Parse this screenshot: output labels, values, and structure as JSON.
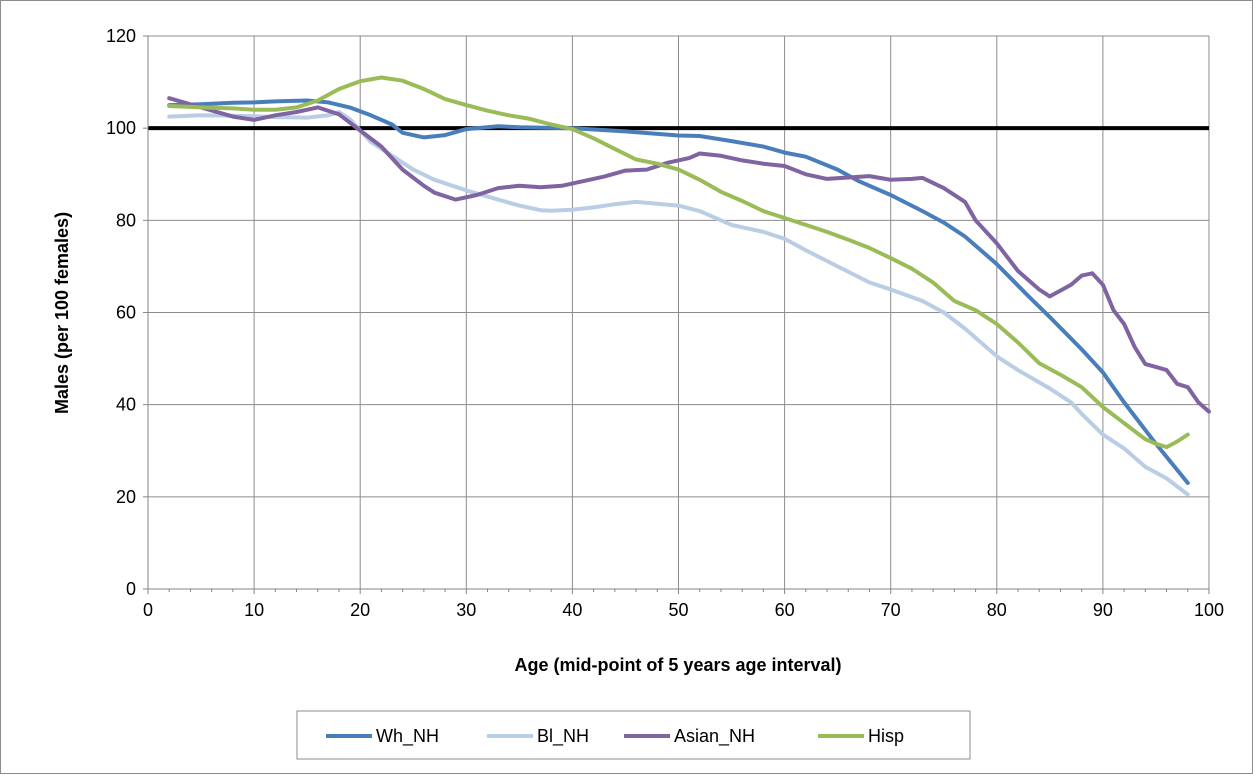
{
  "chart_data": {
    "type": "line",
    "title": "",
    "xlabel": "Age (mid-point of 5 years age interval)",
    "ylabel": "Males (per 100 females)",
    "xlim": [
      0,
      100
    ],
    "ylim": [
      0,
      120
    ],
    "x_ticks": [
      0,
      10,
      20,
      30,
      40,
      50,
      60,
      70,
      80,
      90,
      100
    ],
    "y_ticks": [
      0,
      20,
      40,
      60,
      80,
      100,
      120
    ],
    "grid": true,
    "legend_position": "bottom",
    "reference_line": {
      "y": 100,
      "color": "#000000"
    },
    "series": [
      {
        "name": "Wh_NH",
        "color": "#4a7ebb",
        "points": [
          [
            2,
            105
          ],
          [
            5,
            105.2
          ],
          [
            8,
            105.5
          ],
          [
            10,
            105.6
          ],
          [
            12,
            105.8
          ],
          [
            15,
            106
          ],
          [
            17,
            105.6
          ],
          [
            19,
            104.5
          ],
          [
            21,
            102.8
          ],
          [
            23,
            100.8
          ],
          [
            24,
            99
          ],
          [
            26,
            98
          ],
          [
            28,
            98.5
          ],
          [
            30,
            99.8
          ],
          [
            33,
            100.4
          ],
          [
            35,
            100.2
          ],
          [
            40,
            100
          ],
          [
            45,
            99.3
          ],
          [
            50,
            98.4
          ],
          [
            52,
            98.3
          ],
          [
            55,
            97.2
          ],
          [
            58,
            96
          ],
          [
            60,
            94.7
          ],
          [
            62,
            93.8
          ],
          [
            65,
            91
          ],
          [
            67,
            88.5
          ],
          [
            70,
            85.5
          ],
          [
            73,
            82
          ],
          [
            75,
            79.5
          ],
          [
            77,
            76.5
          ],
          [
            80,
            70.5
          ],
          [
            83,
            63.5
          ],
          [
            85,
            59
          ],
          [
            88,
            52
          ],
          [
            90,
            47
          ],
          [
            92,
            40.5
          ],
          [
            95,
            31.5
          ],
          [
            98,
            23
          ]
        ]
      },
      {
        "name": "Bl_NH",
        "color": "#b9cde5",
        "points": [
          [
            2,
            102.5
          ],
          [
            5,
            102.8
          ],
          [
            8,
            102.7
          ],
          [
            10,
            102.6
          ],
          [
            12,
            102.4
          ],
          [
            15,
            102.3
          ],
          [
            17,
            102.8
          ],
          [
            18,
            103.5
          ],
          [
            19,
            102
          ],
          [
            21,
            97
          ],
          [
            23,
            94
          ],
          [
            25,
            91
          ],
          [
            27,
            88.8
          ],
          [
            30,
            86.5
          ],
          [
            33,
            84.5
          ],
          [
            35,
            83.2
          ],
          [
            37,
            82.2
          ],
          [
            38,
            82.1
          ],
          [
            40,
            82.3
          ],
          [
            42,
            82.8
          ],
          [
            44,
            83.5
          ],
          [
            46,
            84
          ],
          [
            48,
            83.6
          ],
          [
            50,
            83.2
          ],
          [
            52,
            82
          ],
          [
            55,
            79
          ],
          [
            58,
            77.5
          ],
          [
            60,
            76
          ],
          [
            62,
            73.5
          ],
          [
            65,
            70
          ],
          [
            68,
            66.5
          ],
          [
            70,
            65
          ],
          [
            73,
            62.5
          ],
          [
            75,
            60
          ],
          [
            77,
            56.5
          ],
          [
            80,
            50.5
          ],
          [
            82,
            47.5
          ],
          [
            85,
            43.5
          ],
          [
            87,
            40.5
          ],
          [
            88,
            38
          ],
          [
            90,
            33.5
          ],
          [
            92,
            30.5
          ],
          [
            94,
            26.5
          ],
          [
            96,
            24
          ],
          [
            98,
            20.5
          ]
        ]
      },
      {
        "name": "Asian_NH",
        "color": "#8064a2",
        "points": [
          [
            2,
            106.5
          ],
          [
            5,
            104.5
          ],
          [
            8,
            102.5
          ],
          [
            10,
            101.8
          ],
          [
            12,
            102.8
          ],
          [
            14,
            103.5
          ],
          [
            16,
            104.5
          ],
          [
            18,
            103
          ],
          [
            20,
            99.5
          ],
          [
            22,
            96
          ],
          [
            24,
            91
          ],
          [
            26,
            87.5
          ],
          [
            27,
            86
          ],
          [
            29,
            84.5
          ],
          [
            31,
            85.5
          ],
          [
            33,
            87
          ],
          [
            35,
            87.5
          ],
          [
            37,
            87.2
          ],
          [
            39,
            87.5
          ],
          [
            41,
            88.5
          ],
          [
            43,
            89.5
          ],
          [
            45,
            90.8
          ],
          [
            47,
            91
          ],
          [
            49,
            92.5
          ],
          [
            51,
            93.5
          ],
          [
            52,
            94.5
          ],
          [
            54,
            94
          ],
          [
            56,
            93
          ],
          [
            58,
            92.3
          ],
          [
            60,
            91.8
          ],
          [
            62,
            90
          ],
          [
            64,
            89
          ],
          [
            66,
            89.3
          ],
          [
            68,
            89.6
          ],
          [
            70,
            88.8
          ],
          [
            72,
            89
          ],
          [
            73,
            89.2
          ],
          [
            75,
            87
          ],
          [
            77,
            84
          ],
          [
            78,
            80
          ],
          [
            80,
            75
          ],
          [
            82,
            69
          ],
          [
            84,
            65
          ],
          [
            85,
            63.5
          ],
          [
            87,
            66
          ],
          [
            88,
            68
          ],
          [
            89,
            68.5
          ],
          [
            90,
            66
          ],
          [
            91,
            60.5
          ],
          [
            92,
            57.5
          ],
          [
            93,
            52.5
          ],
          [
            94,
            48.8
          ],
          [
            95,
            48.2
          ],
          [
            96,
            47.5
          ],
          [
            97,
            44.5
          ],
          [
            98,
            43.8
          ],
          [
            99,
            40.5
          ],
          [
            100,
            38.5
          ]
        ]
      },
      {
        "name": "Hisp",
        "color": "#9bbb59",
        "points": [
          [
            2,
            104.8
          ],
          [
            5,
            104.5
          ],
          [
            8,
            104.3
          ],
          [
            10,
            104
          ],
          [
            12,
            104
          ],
          [
            14,
            104.5
          ],
          [
            16,
            106
          ],
          [
            18,
            108.5
          ],
          [
            20,
            110.2
          ],
          [
            22,
            111
          ],
          [
            24,
            110.3
          ],
          [
            26,
            108.5
          ],
          [
            28,
            106.3
          ],
          [
            30,
            105
          ],
          [
            32,
            103.8
          ],
          [
            34,
            102.8
          ],
          [
            36,
            102
          ],
          [
            38,
            100.8
          ],
          [
            40,
            99.8
          ],
          [
            42,
            97.8
          ],
          [
            44,
            95.5
          ],
          [
            46,
            93.2
          ],
          [
            48,
            92.3
          ],
          [
            50,
            91
          ],
          [
            52,
            88.8
          ],
          [
            54,
            86.2
          ],
          [
            56,
            84.2
          ],
          [
            58,
            82
          ],
          [
            60,
            80.5
          ],
          [
            62,
            79
          ],
          [
            64,
            77.5
          ],
          [
            66,
            75.8
          ],
          [
            68,
            74
          ],
          [
            70,
            71.8
          ],
          [
            72,
            69.5
          ],
          [
            74,
            66.5
          ],
          [
            76,
            62.5
          ],
          [
            78,
            60.5
          ],
          [
            80,
            57.5
          ],
          [
            82,
            53.5
          ],
          [
            84,
            49
          ],
          [
            86,
            46.5
          ],
          [
            88,
            43.8
          ],
          [
            90,
            39.5
          ],
          [
            92,
            36
          ],
          [
            94,
            32.5
          ],
          [
            95,
            31.5
          ],
          [
            96,
            30.8
          ],
          [
            97,
            32
          ],
          [
            98,
            33.5
          ]
        ]
      }
    ]
  }
}
